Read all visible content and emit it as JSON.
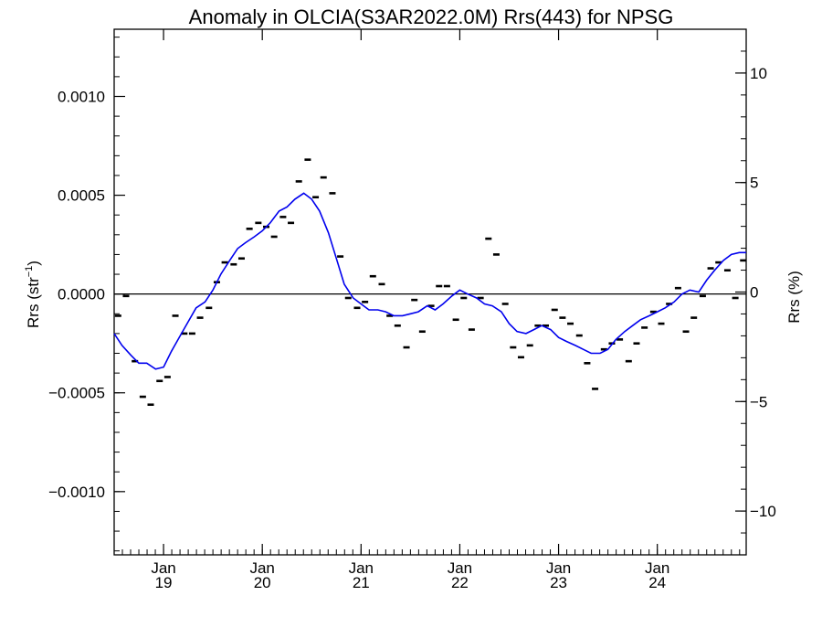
{
  "chart_data": {
    "type": "line",
    "title": "Anomaly in OLCIA(S3AR2022.0M) Rrs(443) for NPSG",
    "ylabel_left": "Rrs (str",
    "ylabel_left_exp": "−1",
    "ylabel_left_close": ")",
    "ylabel_right": "Rrs (%)",
    "xlim": [
      2018.5,
      2024.9
    ],
    "ylim": [
      -0.00132,
      0.00134
    ],
    "ylim_right": [
      -12,
      12
    ],
    "x_ticks": [
      {
        "x": 2019.0,
        "month": "Jan",
        "year": "19"
      },
      {
        "x": 2020.0,
        "month": "Jan",
        "year": "20"
      },
      {
        "x": 2021.0,
        "month": "Jan",
        "year": "21"
      },
      {
        "x": 2022.0,
        "month": "Jan",
        "year": "22"
      },
      {
        "x": 2023.0,
        "month": "Jan",
        "year": "23"
      },
      {
        "x": 2024.0,
        "month": "Jan",
        "year": "24"
      }
    ],
    "y_ticks_left": [
      {
        "value": 0.001,
        "label": "0.0010"
      },
      {
        "value": 0.0005,
        "label": "0.0005"
      },
      {
        "value": 0.0,
        "label": "0.0000"
      },
      {
        "value": -0.0005,
        "label": "−0.0005"
      },
      {
        "value": -0.001,
        "label": "−0.0010"
      }
    ],
    "y_ticks_right": [
      {
        "value": 10,
        "label": "10"
      },
      {
        "value": 5,
        "label": "5"
      },
      {
        "value": 0,
        "label": "0"
      },
      {
        "value": -5,
        "label": "−5"
      },
      {
        "value": -10,
        "label": "−10"
      }
    ],
    "monthly_anomaly": {
      "color": "#000000",
      "x": [
        2018.54,
        2018.62,
        2018.71,
        2018.79,
        2018.87,
        2018.96,
        2019.04,
        2019.12,
        2019.21,
        2019.29,
        2019.37,
        2019.46,
        2019.54,
        2019.62,
        2019.71,
        2019.79,
        2019.87,
        2019.96,
        2020.04,
        2020.12,
        2020.21,
        2020.29,
        2020.37,
        2020.46,
        2020.54,
        2020.62,
        2020.71,
        2020.79,
        2020.87,
        2020.96,
        2021.04,
        2021.12,
        2021.21,
        2021.29,
        2021.37,
        2021.46,
        2021.54,
        2021.62,
        2021.71,
        2021.79,
        2021.87,
        2021.96,
        2022.04,
        2022.12,
        2022.21,
        2022.29,
        2022.37,
        2022.46,
        2022.54,
        2022.62,
        2022.71,
        2022.79,
        2022.87,
        2022.96,
        2023.04,
        2023.12,
        2023.21,
        2023.29,
        2023.37,
        2023.46,
        2023.54,
        2023.62,
        2023.71,
        2023.79,
        2023.87,
        2023.96,
        2024.04,
        2024.12,
        2024.21,
        2024.29,
        2024.37,
        2024.46,
        2024.54,
        2024.62,
        2024.71,
        2024.79,
        2024.87
      ],
      "y": [
        -0.00011,
        -1e-05,
        -0.00034,
        -0.00052,
        -0.00056,
        -0.00044,
        -0.00042,
        -0.00011,
        -0.0002,
        -0.0002,
        -0.00012,
        -7e-05,
        6e-05,
        0.00016,
        0.00015,
        0.00018,
        0.00033,
        0.00036,
        0.00034,
        0.00029,
        0.00039,
        0.00036,
        0.00057,
        0.00068,
        0.00049,
        0.00059,
        0.00051,
        0.00019,
        -2e-05,
        -7e-05,
        -4e-05,
        9e-05,
        5e-05,
        -0.00011,
        -0.00016,
        -0.00027,
        -3e-05,
        -0.00019,
        -6e-05,
        4e-05,
        4e-05,
        -0.00013,
        -2e-05,
        -0.00018,
        -2e-05,
        0.00028,
        0.0002,
        -5e-05,
        -0.00027,
        -0.00032,
        -0.00026,
        -0.00016,
        -0.00016,
        -8e-05,
        -0.00012,
        -0.00015,
        -0.00021,
        -0.00035,
        -0.00048,
        -0.00028,
        -0.00025,
        -0.00023,
        -0.00034,
        -0.00025,
        -0.00017,
        -9e-05,
        -0.00015,
        -5e-05,
        3e-05,
        -0.00019,
        -0.00012,
        -1e-05,
        0.00013,
        0.00016,
        0.00012,
        -2e-05,
        0.00017
      ]
    },
    "running_mean": {
      "color": "#0000ee",
      "x": [
        2018.5,
        2018.58,
        2018.67,
        2018.75,
        2018.83,
        2018.92,
        2019.0,
        2019.08,
        2019.17,
        2019.25,
        2019.33,
        2019.42,
        2019.5,
        2019.58,
        2019.67,
        2019.75,
        2019.83,
        2019.92,
        2020.0,
        2020.08,
        2020.17,
        2020.25,
        2020.33,
        2020.42,
        2020.5,
        2020.58,
        2020.67,
        2020.75,
        2020.83,
        2020.92,
        2021.0,
        2021.08,
        2021.17,
        2021.25,
        2021.33,
        2021.42,
        2021.5,
        2021.58,
        2021.67,
        2021.75,
        2021.83,
        2021.92,
        2022.0,
        2022.08,
        2022.17,
        2022.25,
        2022.33,
        2022.42,
        2022.5,
        2022.58,
        2022.67,
        2022.75,
        2022.83,
        2022.92,
        2023.0,
        2023.08,
        2023.17,
        2023.25,
        2023.33,
        2023.42,
        2023.5,
        2023.58,
        2023.67,
        2023.75,
        2023.83,
        2023.92,
        2024.0,
        2024.08,
        2024.17,
        2024.25,
        2024.33,
        2024.42,
        2024.5,
        2024.58,
        2024.67,
        2024.75,
        2024.83,
        2024.9
      ],
      "y": [
        -0.0002,
        -0.00026,
        -0.00031,
        -0.00035,
        -0.00035,
        -0.00038,
        -0.00037,
        -0.00029,
        -0.00021,
        -0.00014,
        -7e-05,
        -4e-05,
        2e-05,
        0.0001,
        0.00017,
        0.00023,
        0.00026,
        0.00029,
        0.00032,
        0.00036,
        0.00042,
        0.00044,
        0.00048,
        0.00051,
        0.00048,
        0.00042,
        0.00031,
        0.00018,
        5e-05,
        -2e-05,
        -5e-05,
        -8e-05,
        -8e-05,
        -9e-05,
        -0.00011,
        -0.00011,
        -0.0001,
        -9e-05,
        -6e-05,
        -8e-05,
        -5e-05,
        -1e-05,
        2e-05,
        0.0,
        -2e-05,
        -5e-05,
        -6e-05,
        -9e-05,
        -0.00015,
        -0.00019,
        -0.0002,
        -0.00018,
        -0.00016,
        -0.00018,
        -0.00022,
        -0.00024,
        -0.00026,
        -0.00028,
        -0.0003,
        -0.0003,
        -0.00028,
        -0.00023,
        -0.00019,
        -0.00016,
        -0.00013,
        -0.00011,
        -9e-05,
        -7e-05,
        -4e-05,
        0.0,
        2e-05,
        1e-05,
        7e-05,
        0.00012,
        0.00017,
        0.0002,
        0.00021,
        0.00021
      ]
    }
  }
}
